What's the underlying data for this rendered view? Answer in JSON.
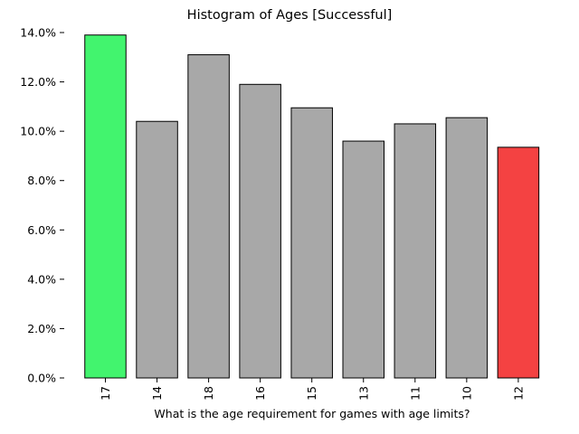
{
  "chart_data": {
    "type": "bar",
    "title": "Histogram of Ages [Successful]",
    "xlabel": "What is the age requirement for games with age limits?",
    "ylabel": "",
    "categories": [
      "17",
      "14",
      "18",
      "16",
      "15",
      "13",
      "11",
      "10",
      "12"
    ],
    "values": [
      13.9,
      10.4,
      13.1,
      11.9,
      10.95,
      9.6,
      10.3,
      10.55,
      9.35
    ],
    "value_unit": "%",
    "ylim": [
      0,
      14.0
    ],
    "yticks": [
      "0.0%",
      "2.0%",
      "4.0%",
      "6.0%",
      "8.0%",
      "10.0%",
      "12.0%",
      "14.0%"
    ],
    "grid": false,
    "legend": "none",
    "colors": {
      "default": "#a8a8a8",
      "highest": "#42f46e",
      "lowest": "#f44242",
      "edge": "#000000"
    },
    "bar_colors": [
      "#42f46e",
      "#a8a8a8",
      "#a8a8a8",
      "#a8a8a8",
      "#a8a8a8",
      "#a8a8a8",
      "#a8a8a8",
      "#a8a8a8",
      "#f44242"
    ]
  }
}
